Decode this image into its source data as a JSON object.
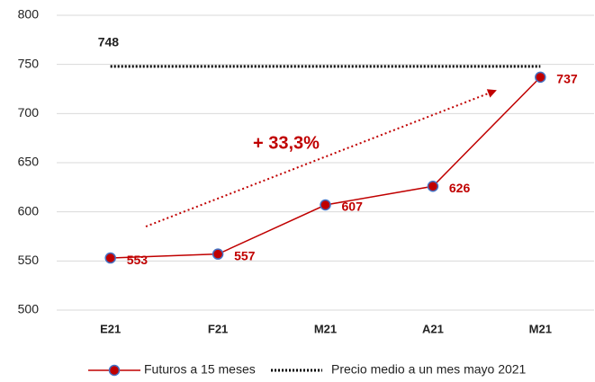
{
  "chart_data": {
    "type": "line",
    "categories": [
      "E21",
      "F21",
      "M21",
      "A21",
      "M21"
    ],
    "series": [
      {
        "name": "Futuros a 15 meses",
        "color": "#c00000",
        "values": [
          553,
          557,
          607,
          626,
          737
        ]
      },
      {
        "name": "Precio medio a un mes mayo 2021",
        "color": "#000000",
        "values": [
          748,
          748,
          748,
          748,
          748
        ]
      }
    ],
    "annotation": "+ 33,3%",
    "ylim": [
      500,
      800
    ],
    "yticks": [
      500,
      550,
      600,
      650,
      700,
      750,
      800
    ],
    "grid": true,
    "legend": "bottom"
  }
}
